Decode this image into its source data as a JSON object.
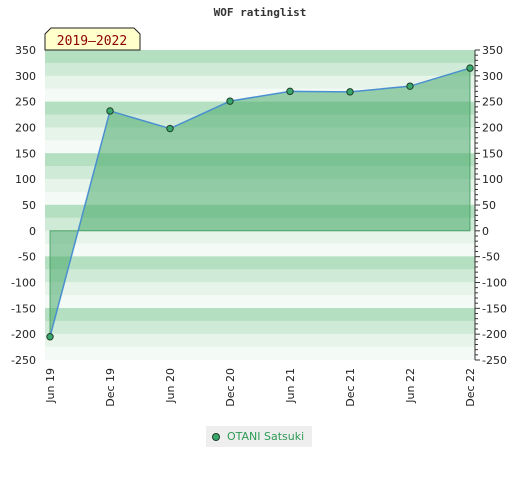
{
  "title": "WOF ratinglist",
  "period_badge": "2019–2022",
  "colors": {
    "area": "#4aaa6c",
    "line": "#4a90d0",
    "marker": "#3aa76d",
    "legend_text": "#2e9b55"
  },
  "chart_data": {
    "type": "area",
    "title": "WOF ratinglist",
    "categories": [
      "Jun 19",
      "Dec 19",
      "Jun 20",
      "Dec 20",
      "Jun 21",
      "Dec 21",
      "Jun 22",
      "Dec 22"
    ],
    "series": [
      {
        "name": "OTANI Satsuki",
        "values": [
          -205,
          232,
          198,
          251,
          270,
          269,
          280,
          315
        ]
      }
    ],
    "ylim": [
      -250,
      350
    ],
    "yticks": [
      -250,
      -200,
      -150,
      -100,
      -50,
      0,
      50,
      100,
      150,
      200,
      250,
      300,
      350
    ],
    "right_axis": true,
    "legend": "bottom-center",
    "grid": "horizontal-bands"
  }
}
